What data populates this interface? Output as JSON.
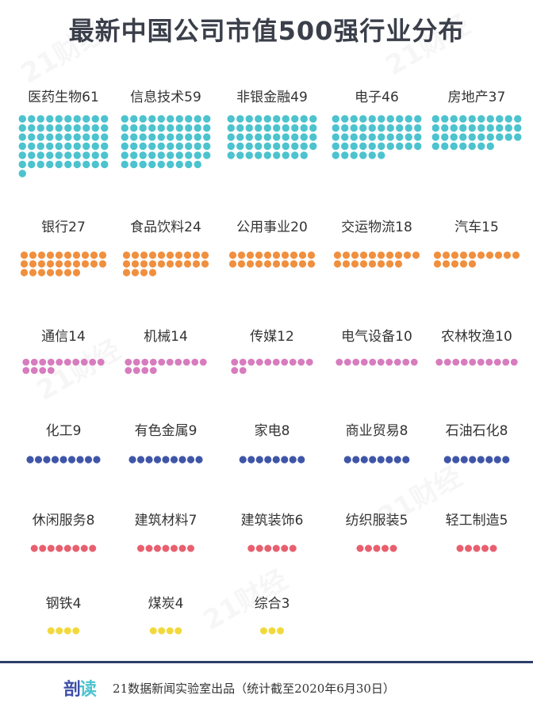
{
  "title": "最新中国公司市值500强行业分布",
  "footer": {
    "logo_part1": "剖",
    "logo_part2": "读",
    "text": "21数据新闻实验室出品（统计截至2020年6月30日）"
  },
  "watermark_text": "21财经",
  "colors": {
    "teal": "#4cc3cf",
    "orange": "#f08f3e",
    "pink": "#d77cbe",
    "navy": "#3f56a8",
    "red": "#e85f6e",
    "yellow": "#f2d93b",
    "title": "#3a3f4a",
    "footer_line": "#2b3f6b"
  },
  "chart_data": {
    "type": "dot-matrix",
    "title": "最新中国公司市值500强行业分布",
    "categories": [
      {
        "name": "医药生物",
        "value": 61,
        "color": "teal"
      },
      {
        "name": "信息技术",
        "value": 59,
        "color": "teal"
      },
      {
        "name": "非银金融",
        "value": 49,
        "color": "teal"
      },
      {
        "name": "电子",
        "value": 46,
        "color": "teal"
      },
      {
        "name": "房地产",
        "value": 37,
        "color": "teal"
      },
      {
        "name": "银行",
        "value": 27,
        "color": "orange"
      },
      {
        "name": "食品饮料",
        "value": 24,
        "color": "orange"
      },
      {
        "name": "公用事业",
        "value": 20,
        "color": "orange"
      },
      {
        "name": "交运物流",
        "value": 18,
        "color": "orange"
      },
      {
        "name": "汽车",
        "value": 15,
        "color": "orange"
      },
      {
        "name": "通信",
        "value": 14,
        "color": "pink"
      },
      {
        "name": "机械",
        "value": 14,
        "color": "pink"
      },
      {
        "name": "传媒",
        "value": 12,
        "color": "pink"
      },
      {
        "name": "电气设备",
        "value": 10,
        "color": "pink"
      },
      {
        "name": "农林牧渔",
        "value": 10,
        "color": "pink"
      },
      {
        "name": "化工",
        "value": 9,
        "color": "navy"
      },
      {
        "name": "有色金属",
        "value": 9,
        "color": "navy"
      },
      {
        "name": "家电",
        "value": 8,
        "color": "navy"
      },
      {
        "name": "商业贸易",
        "value": 8,
        "color": "navy"
      },
      {
        "name": "石油石化",
        "value": 8,
        "color": "navy"
      },
      {
        "name": "休闲服务",
        "value": 8,
        "color": "red"
      },
      {
        "name": "建筑材料",
        "value": 7,
        "color": "red"
      },
      {
        "name": "建筑装饰",
        "value": 6,
        "color": "red"
      },
      {
        "name": "纺织服装",
        "value": 5,
        "color": "red"
      },
      {
        "name": "轻工制造",
        "value": 5,
        "color": "red"
      },
      {
        "name": "钢铁",
        "value": 4,
        "color": "yellow"
      },
      {
        "name": "煤炭",
        "value": 4,
        "color": "yellow"
      },
      {
        "name": "综合",
        "value": 3,
        "color": "yellow"
      }
    ]
  }
}
